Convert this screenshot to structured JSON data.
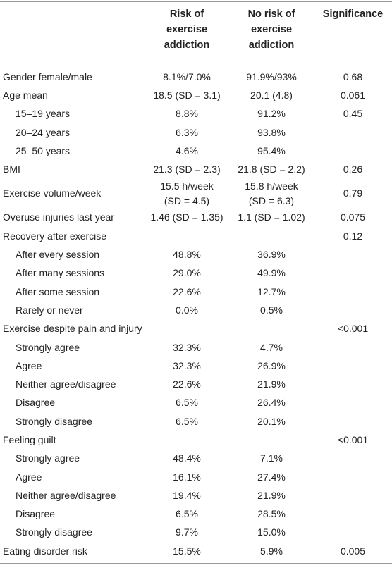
{
  "table": {
    "header": [
      null,
      [
        "Risk of",
        "exercise",
        "addiction"
      ],
      [
        "No risk of",
        "exercise",
        "addiction"
      ],
      [
        "Significance"
      ]
    ],
    "rows": [
      {
        "label": "Gender female/male",
        "cells": [
          "8.1%/7.0%",
          "91.9%/93%",
          "0.68"
        ]
      },
      {
        "label": "Age mean",
        "cells": [
          "18.5 (SD = 3.1)",
          "20.1 (4.8)",
          "0.061"
        ]
      },
      {
        "label": "15–19 years",
        "indent": true,
        "cells": [
          "8.8%",
          "91.2%",
          "0.45"
        ]
      },
      {
        "label": "20–24 years",
        "indent": true,
        "cells": [
          "6.3%",
          "93.8%",
          null
        ]
      },
      {
        "label": "25–50 years",
        "indent": true,
        "cells": [
          "4.6%",
          "95.4%",
          null
        ]
      },
      {
        "label": "BMI",
        "cells": [
          "21.3 (SD = 2.3)",
          "21.8 (SD = 2.2)",
          "0.26"
        ]
      },
      {
        "label": "Exercise volume/week",
        "cells": [
          [
            "15.5 h/week",
            "(SD = 4.5)"
          ],
          [
            "15.8 h/week",
            "(SD = 6.3)"
          ],
          "0.79"
        ]
      },
      {
        "label": "Overuse injuries last year",
        "cells": [
          "1.46 (SD = 1.35)",
          "1.1 (SD = 1.02)",
          "0.075"
        ]
      },
      {
        "label": "Recovery after exercise",
        "cells": [
          null,
          null,
          "0.12"
        ]
      },
      {
        "label": "After every session",
        "indent": true,
        "cells": [
          "48.8%",
          "36.9%",
          null
        ]
      },
      {
        "label": "After many sessions",
        "indent": true,
        "cells": [
          "29.0%",
          "49.9%",
          null
        ]
      },
      {
        "label": "After some session",
        "indent": true,
        "cells": [
          "22.6%",
          "12.7%",
          null
        ]
      },
      {
        "label": "Rarely or never",
        "indent": true,
        "cells": [
          "0.0%",
          "0.5%",
          null
        ]
      },
      {
        "label": "Exercise despite pain and injury",
        "cells": [
          null,
          null,
          "<0.001"
        ]
      },
      {
        "label": "Strongly agree",
        "indent": true,
        "cells": [
          "32.3%",
          "4.7%",
          null
        ]
      },
      {
        "label": "Agree",
        "indent": true,
        "cells": [
          "32.3%",
          "26.9%",
          null
        ]
      },
      {
        "label": "Neither agree/disagree",
        "indent": true,
        "cells": [
          "22.6%",
          "21.9%",
          null
        ]
      },
      {
        "label": "Disagree",
        "indent": true,
        "cells": [
          "6.5%",
          "26.4%",
          null
        ]
      },
      {
        "label": "Strongly disagree",
        "indent": true,
        "cells": [
          "6.5%",
          "20.1%",
          null
        ]
      },
      {
        "label": "Feeling guilt",
        "cells": [
          null,
          null,
          "<0.001"
        ]
      },
      {
        "label": "Strongly agree",
        "indent": true,
        "cells": [
          "48.4%",
          "7.1%",
          null
        ]
      },
      {
        "label": "Agree",
        "indent": true,
        "cells": [
          "16.1%",
          "27.4%",
          null
        ]
      },
      {
        "label": "Neither agree/disagree",
        "indent": true,
        "cells": [
          "19.4%",
          "21.9%",
          null
        ]
      },
      {
        "label": "Disagree",
        "indent": true,
        "cells": [
          "6.5%",
          "28.5%",
          null
        ]
      },
      {
        "label": "Strongly disagree",
        "indent": true,
        "cells": [
          "9.7%",
          "15.0%",
          null
        ]
      },
      {
        "label": "Eating disorder risk",
        "cells": [
          "15.5%",
          "5.9%",
          "0.005"
        ]
      }
    ]
  }
}
